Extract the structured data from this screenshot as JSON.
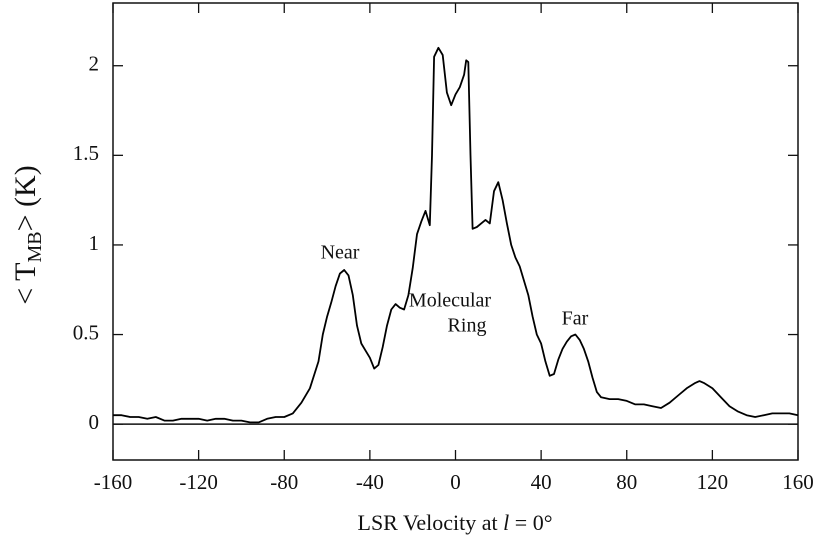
{
  "chart_data": {
    "type": "line",
    "x_label": [
      "LSR Velocity at ",
      "l",
      " = 0°"
    ],
    "y_label": [
      "< T",
      "MB",
      "> (K)"
    ],
    "annotations": [
      "Near",
      "Molecular",
      "Ring",
      "Far"
    ],
    "reference_line": 0,
    "xlim": [
      -160,
      160
    ],
    "ylim": [
      -0.2,
      2.35
    ],
    "xticks": [
      -160,
      -120,
      -80,
      -40,
      0,
      40,
      80,
      120,
      160
    ],
    "yticks": [
      0,
      0.5,
      1,
      1.5,
      2
    ],
    "series": [
      {
        "color": "#000000",
        "x": [
          -160,
          -156,
          -152,
          -148,
          -144,
          -140,
          -136,
          -132,
          -128,
          -124,
          -120,
          -116,
          -112,
          -108,
          -104,
          -100,
          -96,
          -92,
          -88,
          -84,
          -80,
          -76,
          -72,
          -68,
          -64,
          -62,
          -60,
          -58,
          -56,
          -54,
          -52,
          -50,
          -48,
          -46,
          -44,
          -42,
          -40,
          -38,
          -36,
          -34,
          -32,
          -30,
          -28,
          -26,
          -24,
          -22,
          -20,
          -18,
          -16,
          -14,
          -12,
          -11,
          -10,
          -8,
          -6,
          -4,
          -2,
          0,
          2,
          4,
          5,
          6,
          7,
          8,
          10,
          12,
          14,
          16,
          18,
          20,
          22,
          24,
          26,
          28,
          30,
          32,
          34,
          36,
          38,
          40,
          42,
          44,
          46,
          48,
          50,
          52,
          54,
          56,
          58,
          60,
          62,
          64,
          66,
          68,
          72,
          76,
          80,
          84,
          88,
          92,
          96,
          100,
          104,
          108,
          112,
          114,
          116,
          120,
          124,
          128,
          132,
          136,
          140,
          144,
          148,
          152,
          156,
          160
        ],
        "values": [
          0.05,
          0.05,
          0.04,
          0.04,
          0.03,
          0.04,
          0.02,
          0.02,
          0.03,
          0.03,
          0.03,
          0.02,
          0.03,
          0.03,
          0.02,
          0.02,
          0.01,
          0.01,
          0.03,
          0.04,
          0.04,
          0.06,
          0.12,
          0.2,
          0.35,
          0.5,
          0.6,
          0.68,
          0.77,
          0.84,
          0.86,
          0.83,
          0.72,
          0.55,
          0.45,
          0.41,
          0.37,
          0.31,
          0.33,
          0.43,
          0.55,
          0.64,
          0.67,
          0.65,
          0.64,
          0.72,
          0.87,
          1.06,
          1.13,
          1.19,
          1.11,
          1.5,
          2.05,
          2.1,
          2.06,
          1.85,
          1.78,
          1.84,
          1.88,
          1.95,
          2.03,
          2.02,
          1.5,
          1.09,
          1.1,
          1.12,
          1.14,
          1.12,
          1.3,
          1.35,
          1.25,
          1.12,
          1.0,
          0.93,
          0.88,
          0.8,
          0.72,
          0.6,
          0.5,
          0.45,
          0.35,
          0.27,
          0.28,
          0.36,
          0.42,
          0.46,
          0.49,
          0.5,
          0.47,
          0.42,
          0.35,
          0.26,
          0.18,
          0.15,
          0.14,
          0.14,
          0.13,
          0.11,
          0.11,
          0.1,
          0.09,
          0.12,
          0.16,
          0.2,
          0.23,
          0.24,
          0.23,
          0.2,
          0.15,
          0.1,
          0.07,
          0.05,
          0.04,
          0.05,
          0.06,
          0.06,
          0.06,
          0.05
        ]
      }
    ]
  }
}
